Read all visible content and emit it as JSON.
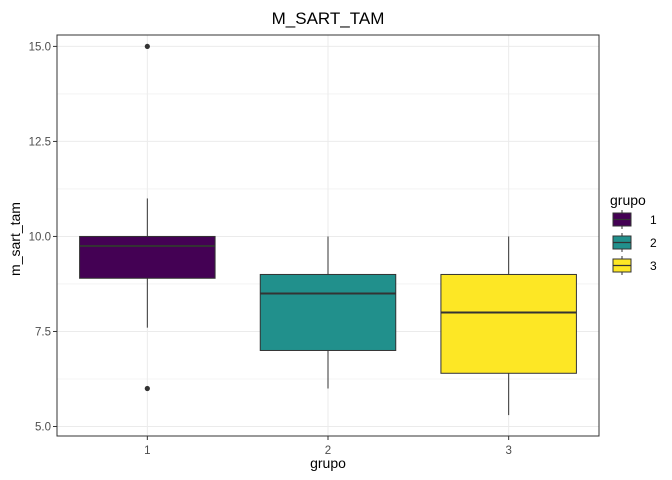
{
  "chart_data": {
    "type": "boxplot",
    "title": "M_SART_TAM",
    "xlabel": "grupo",
    "ylabel": "m_sart_tam",
    "categories": [
      "1",
      "2",
      "3"
    ],
    "yticks": [
      "5.0",
      "7.5",
      "10.0",
      "12.5",
      "15.0"
    ],
    "ylim": [
      4.75,
      15.3
    ],
    "grid": true,
    "legend": {
      "title": "grupo",
      "position": "right"
    },
    "boxes": [
      {
        "category": "1",
        "whisker_low": 7.6,
        "q1": 8.9,
        "median": 9.75,
        "q3": 10.0,
        "whisker_high": 11.0,
        "outliers": [
          15.0,
          6.0
        ],
        "color": "#440154"
      },
      {
        "category": "2",
        "whisker_low": 6.0,
        "q1": 7.0,
        "median": 8.5,
        "q3": 9.0,
        "whisker_high": 10.0,
        "outliers": [],
        "color": "#21908c"
      },
      {
        "category": "3",
        "whisker_low": 5.3,
        "q1": 6.4,
        "median": 8.0,
        "q3": 9.0,
        "whisker_high": 10.0,
        "outliers": [],
        "color": "#fde725"
      }
    ]
  }
}
